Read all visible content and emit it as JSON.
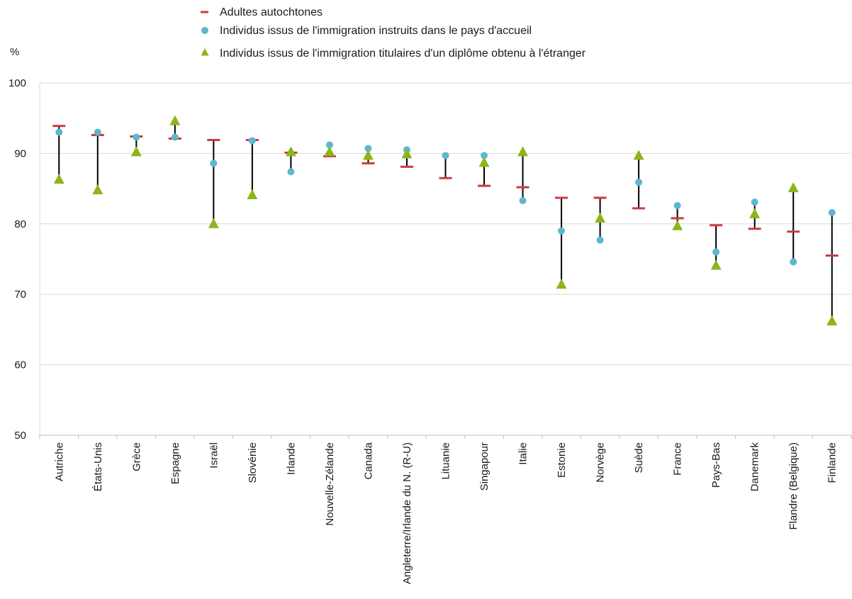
{
  "chart_data": {
    "type": "scatter",
    "title": "",
    "xlabel": "",
    "ylabel": "%",
    "ylim": [
      50,
      100
    ],
    "yticks": [
      50,
      60,
      70,
      80,
      90,
      100
    ],
    "grid": true,
    "legend": "top",
    "categories": [
      "Autriche",
      "États-Unis",
      "Grèce",
      "Espagne",
      "Israël",
      "Slovénie",
      "Irlande",
      "Nouvelle-Zélande",
      "Canada",
      "Angleterre/Irlande du N. (R-U)",
      "Lituanie",
      "Singapour",
      "Italie",
      "Estonie",
      "Norvège",
      "Suède",
      "France",
      "Pays-Bas",
      "Danemark",
      "Flandre (Belgique)",
      "Finlande"
    ],
    "series": [
      {
        "name": "Adultes autochtones",
        "marker": "dash",
        "color": "#cc3a3f",
        "values": [
          93.9,
          92.6,
          92.4,
          92.1,
          91.9,
          91.9,
          90.1,
          89.6,
          88.6,
          88.1,
          86.5,
          85.4,
          85.2,
          83.7,
          83.7,
          82.2,
          80.8,
          79.8,
          79.3,
          78.9,
          75.5
        ]
      },
      {
        "name": "Individus issus de l'immigration instruits dans le pays d'accueil",
        "marker": "circle",
        "color": "#5bb8cf",
        "values": [
          93.0,
          93.0,
          92.3,
          92.3,
          88.6,
          91.8,
          87.4,
          91.2,
          90.7,
          90.5,
          89.7,
          89.7,
          83.3,
          79.0,
          77.7,
          85.9,
          82.6,
          76.0,
          83.1,
          74.6,
          81.6
        ]
      },
      {
        "name": "Individus issus de l'immigration titulaires d'un diplôme obtenu à l'étranger",
        "marker": "triangle",
        "color": "#8db51a",
        "values": [
          86.3,
          84.8,
          90.2,
          94.6,
          80.0,
          84.1,
          90.2,
          90.2,
          89.7,
          89.9,
          null,
          88.7,
          90.2,
          71.4,
          80.8,
          89.7,
          79.7,
          74.1,
          81.4,
          85.1,
          66.2
        ]
      }
    ],
    "range_line_color": "#000000"
  }
}
